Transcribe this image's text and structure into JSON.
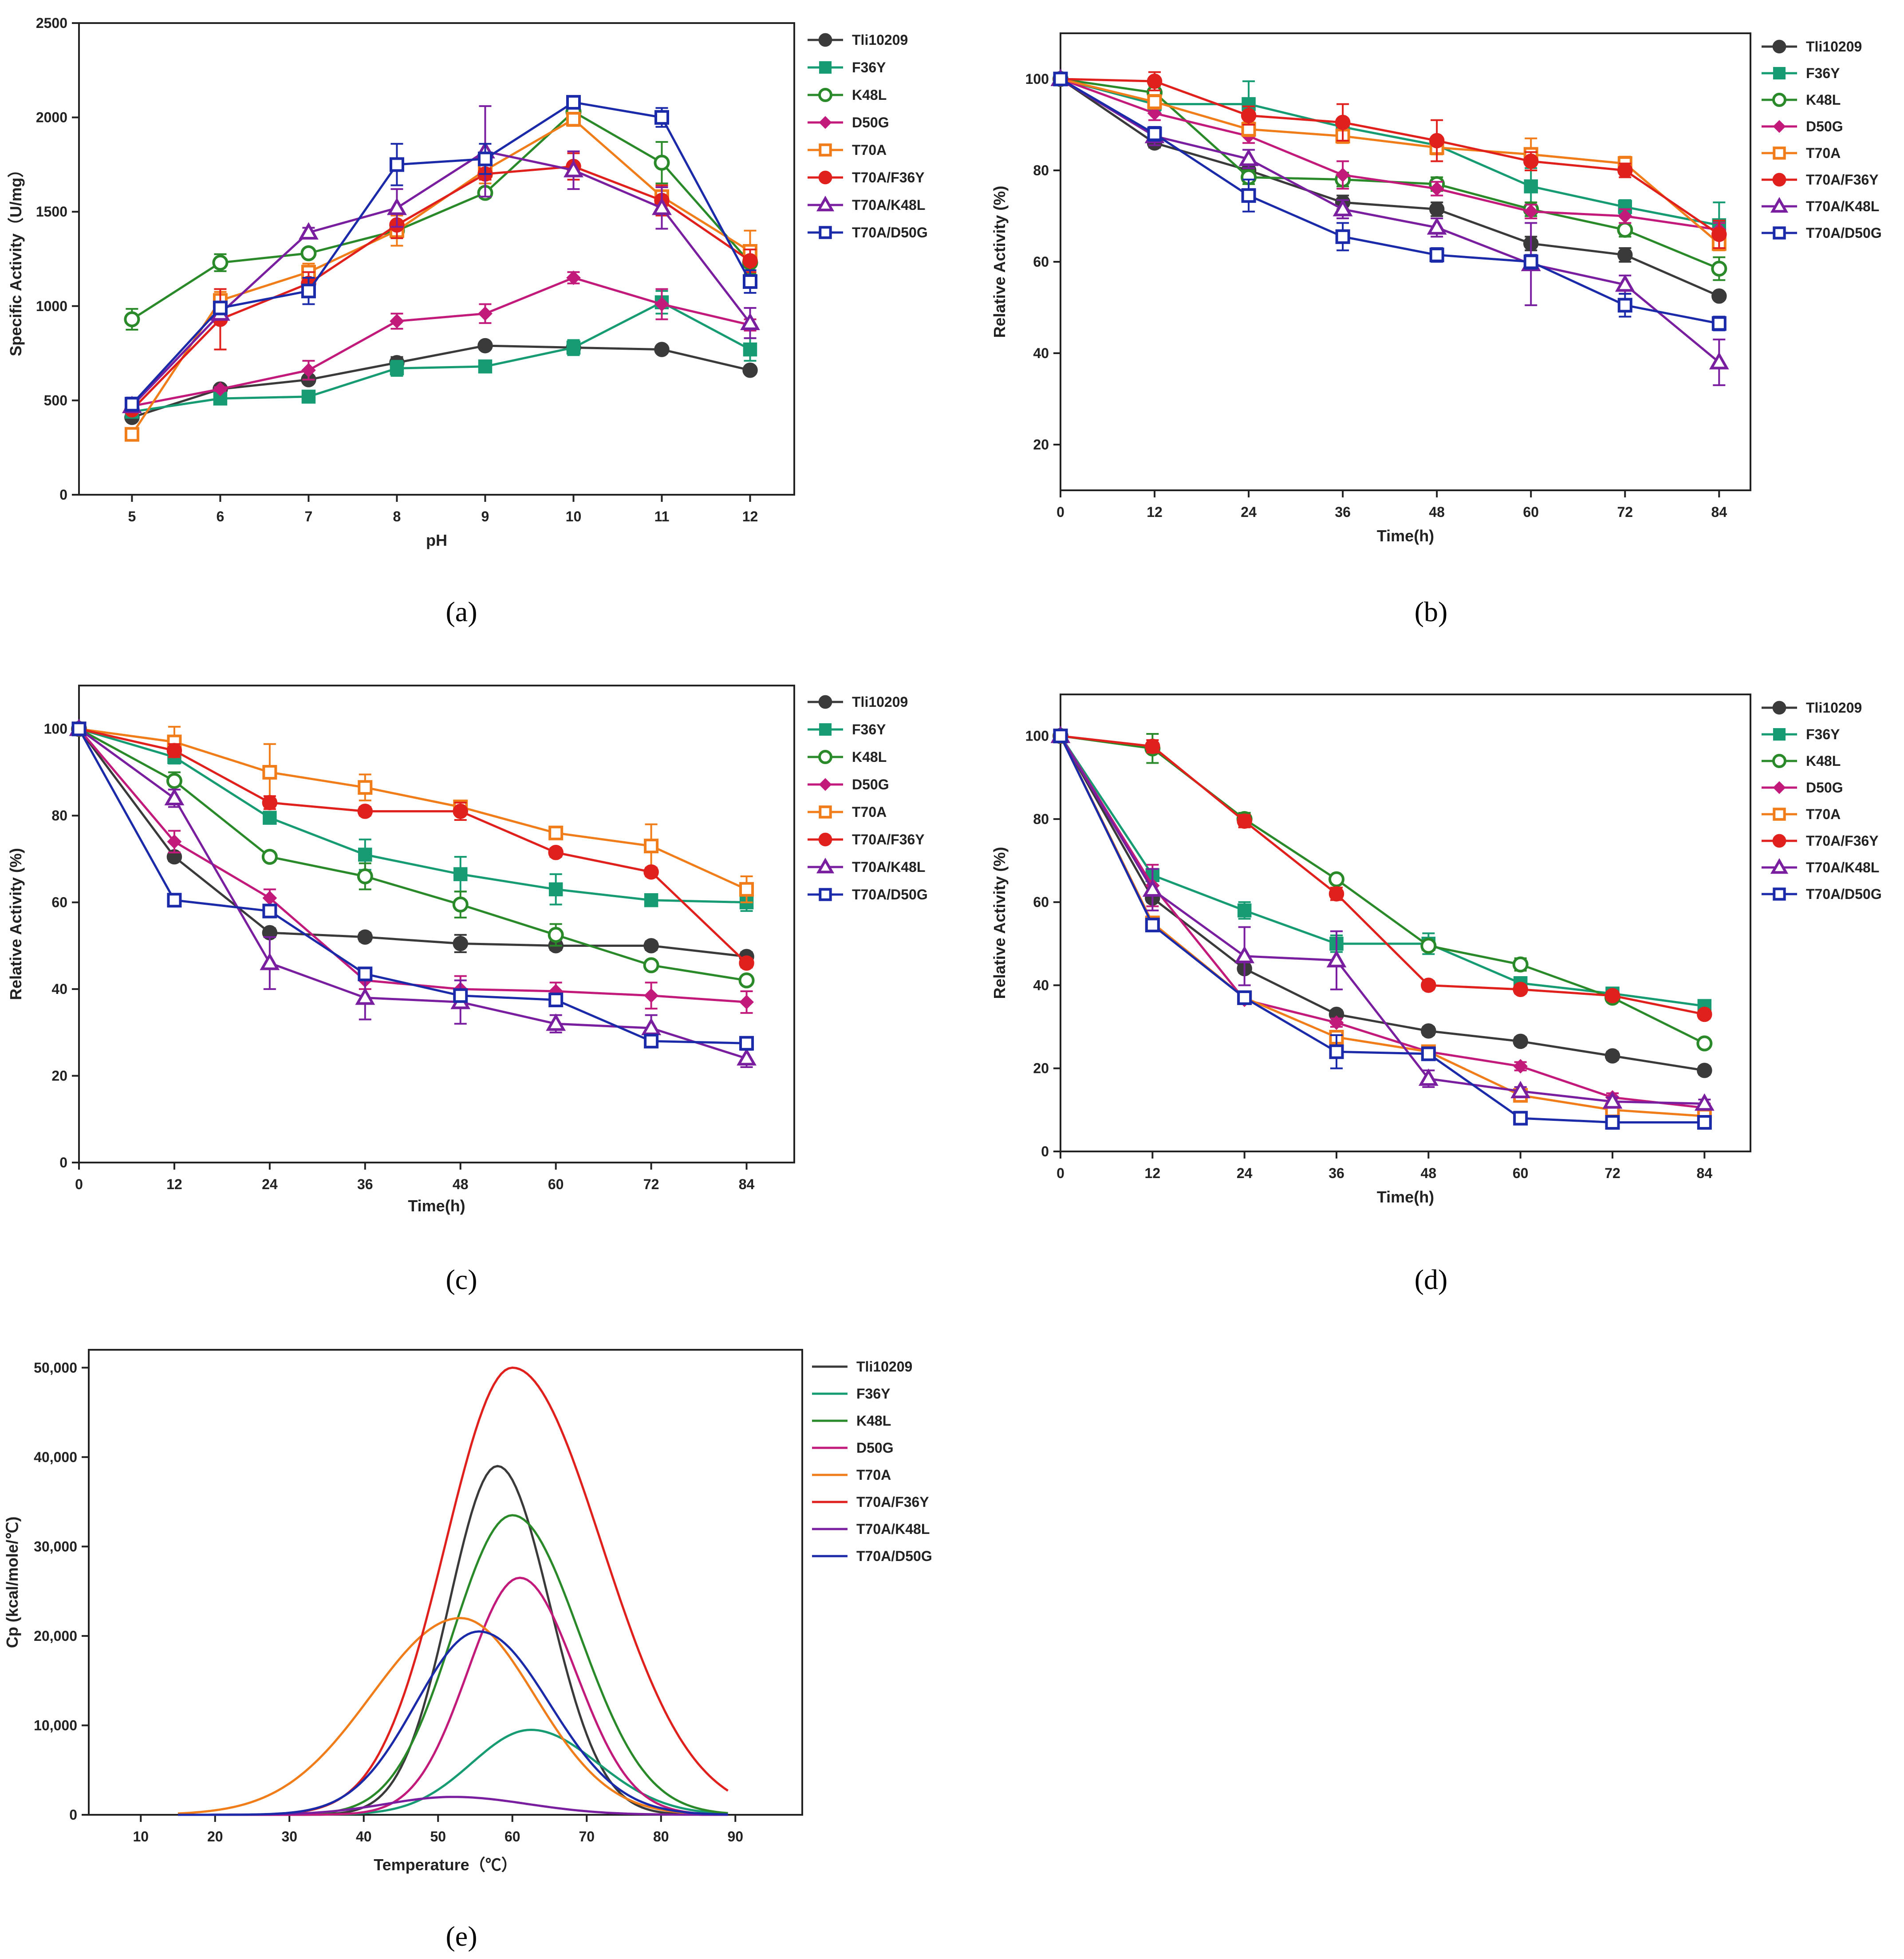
{
  "colors": {
    "Tli10209": "#3a3a3a",
    "F36Y": "#169b73",
    "K48L": "#2a8a2a",
    "D50G": "#c21a7a",
    "T70A": "#f07d1a",
    "T70A/F36Y": "#e0201c",
    "T70A/K48L": "#7a1ea0",
    "T70A/D50G": "#1a2aa8"
  },
  "chart_data": [
    {
      "id": "a",
      "type": "line",
      "panel_label": "(a)",
      "xlabel": "pH",
      "ylabel": "Specific Activity（U/mg）",
      "xlim": [
        4.4,
        12.5
      ],
      "ylim": [
        0,
        2500
      ],
      "xticks": [
        5,
        6,
        7,
        8,
        9,
        10,
        11,
        12
      ],
      "xtick_labels": [
        "5",
        "6",
        "7",
        "8",
        "9",
        "10",
        "11",
        "12"
      ],
      "yticks": [
        0,
        500,
        1000,
        1500,
        2000,
        2500
      ],
      "ytick_labels": [
        "0",
        "500",
        "1000",
        "1500",
        "2000",
        "2500"
      ],
      "x": [
        5,
        6,
        7,
        8,
        9,
        10,
        11,
        12
      ],
      "series": [
        {
          "name": "Tli10209",
          "marker": "circle-filled",
          "values": [
            410,
            560,
            610,
            700,
            790,
            780,
            770,
            660
          ],
          "err": [
            15,
            10,
            10,
            30,
            15,
            15,
            10,
            10
          ]
        },
        {
          "name": "F36Y",
          "marker": "square-filled",
          "values": [
            440,
            510,
            520,
            670,
            680,
            780,
            1020,
            770
          ],
          "err": [
            15,
            10,
            10,
            40,
            15,
            40,
            60,
            60
          ]
        },
        {
          "name": "K48L",
          "marker": "circle-open",
          "values": [
            930,
            1230,
            1280,
            1400,
            1600,
            2030,
            1760,
            1230
          ],
          "err": [
            55,
            45,
            20,
            40,
            25,
            50,
            110,
            60
          ]
        },
        {
          "name": "D50G",
          "marker": "diamond-filled",
          "values": [
            470,
            560,
            660,
            920,
            960,
            1150,
            1010,
            900
          ],
          "err": [
            15,
            10,
            50,
            40,
            50,
            30,
            80,
            30
          ]
        },
        {
          "name": "T70A",
          "marker": "square-open",
          "values": [
            320,
            1030,
            1180,
            1400,
            1720,
            1990,
            1580,
            1290
          ],
          "err": [
            15,
            45,
            45,
            80,
            70,
            35,
            50,
            110
          ]
        },
        {
          "name": "T70A/F36Y",
          "marker": "circle-filled",
          "values": [
            450,
            930,
            1120,
            1430,
            1700,
            1740,
            1560,
            1240
          ],
          "err": [
            15,
            160,
            60,
            70,
            30,
            70,
            80,
            60
          ]
        },
        {
          "name": "T70A/K48L",
          "marker": "triangle-open",
          "values": [
            470,
            960,
            1390,
            1520,
            1820,
            1720,
            1520,
            910
          ],
          "err": [
            15,
            25,
            25,
            100,
            240,
            100,
            110,
            80
          ]
        },
        {
          "name": "T70A/D50G",
          "marker": "square-open",
          "values": [
            480,
            990,
            1080,
            1750,
            1780,
            2080,
            2000,
            1130
          ],
          "err": [
            35,
            25,
            70,
            110,
            80,
            30,
            50,
            60
          ]
        }
      ]
    },
    {
      "id": "b",
      "type": "line",
      "panel_label": "(b)",
      "xlabel": "Time(h)",
      "ylabel": "Relative Activity (%)",
      "xlim": [
        0,
        88
      ],
      "ylim": [
        10,
        110
      ],
      "xticks": [
        0,
        12,
        24,
        36,
        48,
        60,
        72,
        84
      ],
      "xtick_labels": [
        "0",
        "12",
        "24",
        "36",
        "48",
        "60",
        "72",
        "84"
      ],
      "yticks": [
        20,
        40,
        60,
        80,
        100
      ],
      "ytick_labels": [
        "20",
        "40",
        "60",
        "80",
        "100"
      ],
      "x": [
        0,
        12,
        24,
        36,
        48,
        60,
        72,
        84
      ],
      "series": [
        {
          "name": "Tli10209",
          "marker": "circle-filled",
          "values": [
            100,
            86,
            80,
            73,
            71.5,
            64,
            61.5,
            52.5
          ],
          "err": [
            0,
            1,
            1.5,
            1.5,
            1.5,
            1.5,
            1.5,
            0.5
          ]
        },
        {
          "name": "F36Y",
          "marker": "square-filled",
          "values": [
            100,
            94.5,
            94.5,
            89.5,
            85.5,
            76.5,
            72,
            68
          ],
          "err": [
            0,
            1.5,
            5,
            1.5,
            1.5,
            4,
            1.5,
            5
          ]
        },
        {
          "name": "K48L",
          "marker": "circle-open",
          "values": [
            100,
            97,
            78.5,
            78,
            77,
            71.5,
            67,
            58.5
          ],
          "err": [
            0,
            1.5,
            1.5,
            1.5,
            1.5,
            1.5,
            1.5,
            2.5
          ]
        },
        {
          "name": "D50G",
          "marker": "diamond-filled",
          "values": [
            100,
            92.5,
            87.5,
            79,
            76,
            71,
            70,
            67
          ],
          "err": [
            0,
            1.5,
            1.5,
            3,
            1.5,
            1.5,
            1.5,
            1.5
          ]
        },
        {
          "name": "T70A",
          "marker": "square-open",
          "values": [
            100,
            95,
            89,
            87.5,
            85,
            83.5,
            81.5,
            64
          ],
          "err": [
            0,
            1.5,
            1.5,
            1.5,
            1.5,
            3.5,
            1.5,
            1.5
          ]
        },
        {
          "name": "T70A/F36Y",
          "marker": "circle-filled",
          "values": [
            100,
            99.5,
            92,
            90.5,
            86.5,
            82,
            80,
            66
          ],
          "err": [
            0,
            2,
            2,
            4,
            4.5,
            2,
            1.5,
            3
          ]
        },
        {
          "name": "T70A/K48L",
          "marker": "triangle-open",
          "values": [
            100,
            87.5,
            82.5,
            71.5,
            67.5,
            59.5,
            55,
            38
          ],
          "err": [
            0,
            2,
            2,
            2,
            2,
            9,
            2,
            5
          ]
        },
        {
          "name": "T70A/D50G",
          "marker": "square-open",
          "values": [
            100,
            88,
            74.5,
            65.5,
            61.5,
            60,
            50.5,
            46.5
          ],
          "err": [
            0,
            1.5,
            3.5,
            3,
            1.5,
            1.5,
            2.5,
            1.5
          ]
        }
      ]
    },
    {
      "id": "c",
      "type": "line",
      "panel_label": "(c)",
      "xlabel": "Time(h)",
      "ylabel": "Relative Activity (%)",
      "xlim": [
        0,
        90
      ],
      "ylim": [
        0,
        110
      ],
      "xticks": [
        0,
        12,
        24,
        36,
        48,
        60,
        72,
        84
      ],
      "xtick_labels": [
        "0",
        "12",
        "24",
        "36",
        "48",
        "60",
        "72",
        "84"
      ],
      "yticks": [
        0,
        20,
        40,
        60,
        80,
        100
      ],
      "ytick_labels": [
        "0",
        "20",
        "40",
        "60",
        "80",
        "100"
      ],
      "x": [
        0,
        12,
        24,
        36,
        48,
        60,
        72,
        84
      ],
      "series": [
        {
          "name": "Tli10209",
          "marker": "circle-filled",
          "values": [
            100,
            70.5,
            53,
            52,
            50.5,
            50,
            50,
            47.5
          ],
          "err": [
            0,
            1,
            1,
            1,
            2,
            1,
            1,
            1
          ]
        },
        {
          "name": "F36Y",
          "marker": "square-filled",
          "values": [
            100,
            93.5,
            79.5,
            71,
            66.5,
            63,
            60.5,
            60
          ],
          "err": [
            0,
            1.5,
            1,
            3.5,
            4,
            3.5,
            1,
            2
          ]
        },
        {
          "name": "K48L",
          "marker": "circle-open",
          "values": [
            100,
            88,
            70.5,
            66,
            59.5,
            52.5,
            45.5,
            42
          ],
          "err": [
            0,
            2,
            1,
            3,
            3,
            2.5,
            1,
            1
          ]
        },
        {
          "name": "D50G",
          "marker": "diamond-filled",
          "values": [
            100,
            74,
            61,
            42,
            40,
            39.5,
            38.5,
            37
          ],
          "err": [
            0,
            2.5,
            2,
            2,
            3,
            2,
            3,
            2.5
          ]
        },
        {
          "name": "T70A",
          "marker": "square-open",
          "values": [
            100,
            97,
            90,
            86.5,
            82,
            76,
            73,
            63
          ],
          "err": [
            0,
            3.5,
            6.5,
            3,
            1.5,
            1,
            5,
            3
          ]
        },
        {
          "name": "T70A/F36Y",
          "marker": "circle-filled",
          "values": [
            100,
            95,
            83,
            81,
            81,
            71.5,
            67,
            46
          ],
          "err": [
            0,
            1.5,
            1.5,
            1,
            2,
            1,
            1,
            1
          ]
        },
        {
          "name": "T70A/K48L",
          "marker": "triangle-open",
          "values": [
            100,
            84,
            46,
            38,
            37,
            32,
            31,
            24
          ],
          "err": [
            0,
            2,
            6,
            5,
            5,
            2,
            3,
            2
          ]
        },
        {
          "name": "T70A/D50G",
          "marker": "square-open",
          "values": [
            100,
            60.5,
            58,
            43.5,
            38.5,
            37.5,
            28,
            27.5
          ],
          "err": [
            0,
            1,
            1,
            1,
            1,
            1,
            1,
            1
          ]
        }
      ]
    },
    {
      "id": "d",
      "type": "line",
      "panel_label": "(d)",
      "xlabel": "Time(h)",
      "ylabel": "Relative Activity (%)",
      "xlim": [
        0,
        90
      ],
      "ylim": [
        0,
        110
      ],
      "xticks": [
        0,
        12,
        24,
        36,
        48,
        60,
        72,
        84
      ],
      "xtick_labels": [
        "0",
        "12",
        "24",
        "36",
        "48",
        "60",
        "72",
        "84"
      ],
      "yticks": [
        0,
        20,
        40,
        60,
        80,
        100
      ],
      "ytick_labels": [
        "0",
        "20",
        "40",
        "60",
        "80",
        "100"
      ],
      "x": [
        0,
        12,
        24,
        36,
        48,
        60,
        72,
        84
      ],
      "series": [
        {
          "name": "Tli10209",
          "marker": "circle-filled",
          "values": [
            100,
            61,
            44,
            33,
            29,
            26.5,
            23,
            19.5
          ],
          "err": [
            0,
            1,
            1,
            1,
            1,
            1,
            1,
            1
          ]
        },
        {
          "name": "F36Y",
          "marker": "square-filled",
          "values": [
            100,
            66.5,
            58,
            50,
            50,
            40.5,
            38,
            35
          ],
          "err": [
            0,
            1,
            2,
            2,
            2.5,
            1,
            1,
            1
          ]
        },
        {
          "name": "K48L",
          "marker": "circle-open",
          "values": [
            100,
            97,
            80,
            65.5,
            49.5,
            45,
            37,
            26
          ],
          "err": [
            0,
            3.5,
            1.5,
            1,
            1,
            1.5,
            1,
            1
          ]
        },
        {
          "name": "D50G",
          "marker": "diamond-filled",
          "values": [
            100,
            64,
            36.5,
            31,
            24,
            20.5,
            13,
            10.5
          ],
          "err": [
            0,
            5,
            1,
            1,
            1,
            1,
            1,
            1
          ]
        },
        {
          "name": "T70A",
          "marker": "square-open",
          "values": [
            100,
            55,
            37,
            27.5,
            24,
            13.5,
            10,
            8.5
          ],
          "err": [
            0,
            1,
            1,
            1,
            1,
            1,
            1,
            1
          ]
        },
        {
          "name": "T70A/F36Y",
          "marker": "circle-filled",
          "values": [
            100,
            97.5,
            79.5,
            62,
            40,
            39,
            37.5,
            33
          ],
          "err": [
            0,
            1.5,
            1.5,
            1.5,
            1,
            1,
            1,
            1
          ]
        },
        {
          "name": "T70A/K48L",
          "marker": "triangle-open",
          "values": [
            100,
            63,
            47,
            46,
            17.5,
            14.5,
            12,
            11.5
          ],
          "err": [
            0,
            5,
            7,
            7,
            2,
            1,
            1,
            1
          ]
        },
        {
          "name": "T70A/D50G",
          "marker": "square-open",
          "values": [
            100,
            54.5,
            37,
            24,
            23.5,
            8,
            7,
            7
          ],
          "err": [
            0,
            1,
            1,
            4,
            1,
            1,
            1,
            1
          ]
        }
      ]
    },
    {
      "id": "e",
      "type": "line",
      "panel_label": "(e)",
      "xlabel": "Temperature（℃）",
      "ylabel": "Cp (kcal/mole/℃)",
      "xlim": [
        3,
        99
      ],
      "ylim": [
        0,
        52000
      ],
      "xticks": [
        10,
        20,
        30,
        40,
        50,
        60,
        70,
        80,
        90
      ],
      "xtick_labels": [
        "10",
        "20",
        "30",
        "40",
        "50",
        "60",
        "70",
        "80",
        "90"
      ],
      "yticks": [
        0,
        10000,
        20000,
        30000,
        40000,
        50000
      ],
      "ytick_labels": [
        "0",
        "10,000",
        "20,000",
        "30,000",
        "40,000",
        "50,000"
      ],
      "x_start": 15,
      "x_end": 89,
      "series": [
        {
          "name": "Tli10209",
          "peak_temp": 58,
          "peak_cp": 39000,
          "width_left": 6.5,
          "width_right": 7
        },
        {
          "name": "F36Y",
          "peak_temp": 62.5,
          "peak_cp": 9500,
          "width_left": 8,
          "width_right": 9
        },
        {
          "name": "K48L",
          "peak_temp": 60,
          "peak_cp": 33500,
          "width_left": 8,
          "width_right": 9
        },
        {
          "name": "D50G",
          "peak_temp": 61,
          "peak_cp": 26500,
          "width_left": 7,
          "width_right": 7.5
        },
        {
          "name": "T70A",
          "peak_temp": 53,
          "peak_cp": 22000,
          "width_left": 12,
          "width_right": 10
        },
        {
          "name": "T70A/F36Y",
          "peak_temp": 60,
          "peak_cp": 50000,
          "width_left": 9,
          "width_right": 12
        },
        {
          "name": "T70A/K48L",
          "peak_temp": 52,
          "peak_cp": 2000,
          "width_left": 9,
          "width_right": 10
        },
        {
          "name": "T70A/D50G",
          "peak_temp": 55.5,
          "peak_cp": 20500,
          "width_left": 8.5,
          "width_right": 9.5
        }
      ]
    }
  ]
}
